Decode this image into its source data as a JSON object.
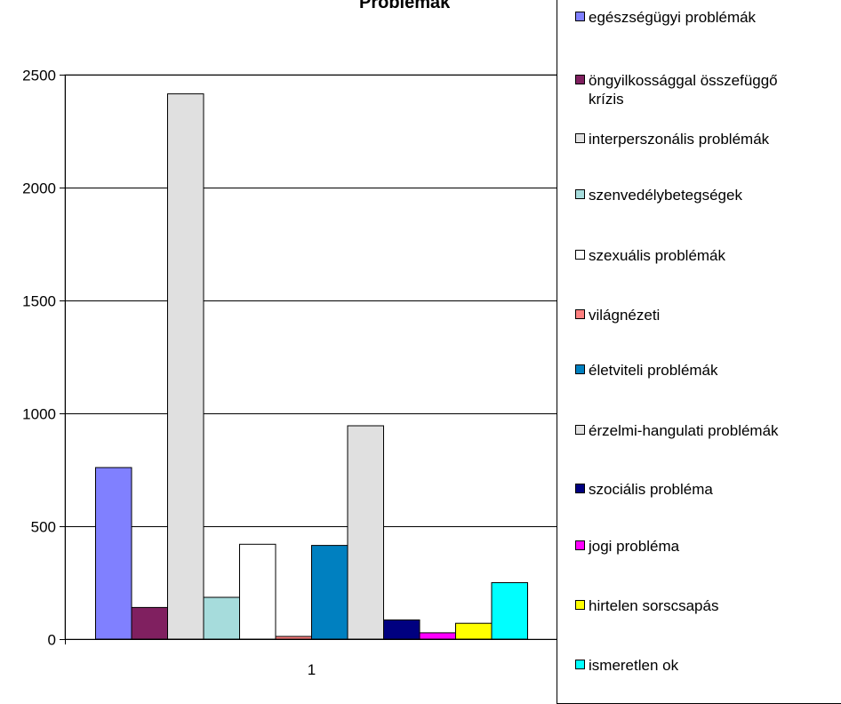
{
  "chart_data": {
    "type": "bar",
    "title": "Problémák",
    "categories": [
      "1"
    ],
    "ylim": [
      0,
      2500
    ],
    "yticks": [
      0,
      500,
      1000,
      1500,
      2000,
      2500
    ],
    "grid": true,
    "legend_position": "right",
    "series": [
      {
        "name": "egészségügyi problémák",
        "values": [
          760
        ],
        "color": "#8080ff"
      },
      {
        "name": "öngyilkossággal összefüggő krízis",
        "values": [
          140
        ],
        "color": "#802060"
      },
      {
        "name": "interperszonális problémák",
        "values": [
          2415
        ],
        "color": "#e0e0e0"
      },
      {
        "name": "szenvedélybetegségek",
        "values": [
          185
        ],
        "color": "#a6dcdc"
      },
      {
        "name": "szexuális problémák",
        "values": [
          420
        ],
        "color": "#ffffff"
      },
      {
        "name": "világnézeti",
        "values": [
          12
        ],
        "color": "#ff8080"
      },
      {
        "name": "életviteli problémák",
        "values": [
          415
        ],
        "color": "#0080c0"
      },
      {
        "name": "érzelmi-hangulati problémák",
        "values": [
          945
        ],
        "color": "#e0e0e0"
      },
      {
        "name": "szociális probléma",
        "values": [
          85
        ],
        "color": "#000080"
      },
      {
        "name": "jogi probléma",
        "values": [
          28
        ],
        "color": "#ff00ff"
      },
      {
        "name": "hirtelen sorscsapás",
        "values": [
          70
        ],
        "color": "#ffff00"
      },
      {
        "name": "ismeretlen ok",
        "values": [
          250
        ],
        "color": "#00ffff"
      }
    ]
  }
}
